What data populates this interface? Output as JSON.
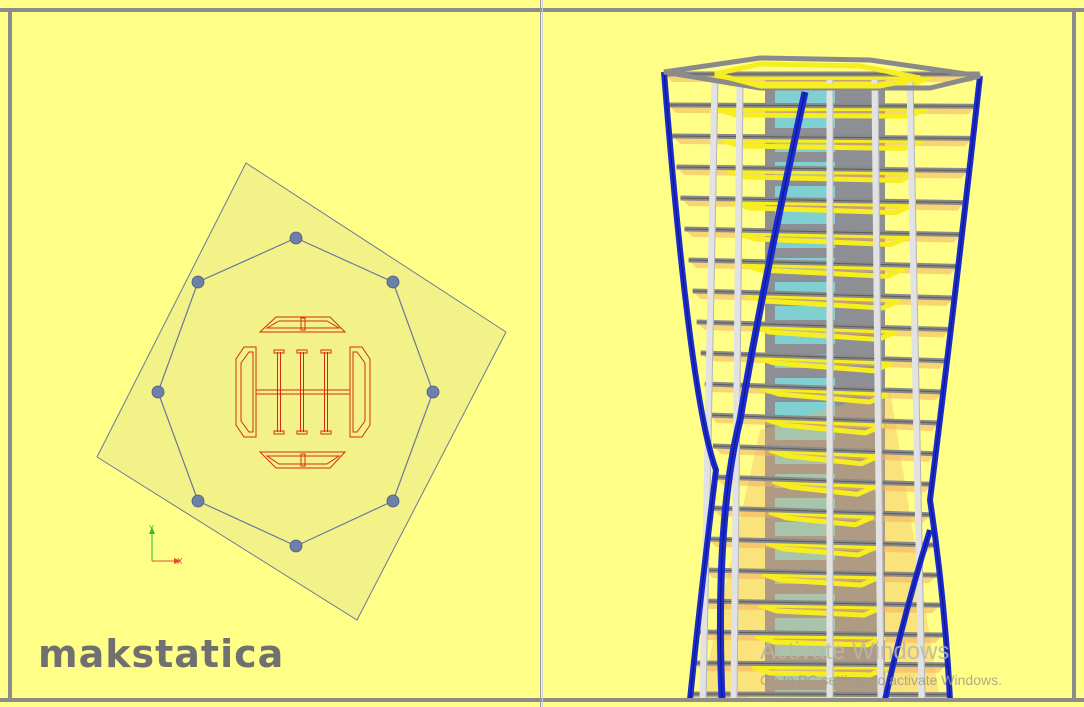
{
  "app": {
    "brand": "makstatica"
  },
  "plan_view": {
    "axis_y_label": "Y",
    "axis_x_label": "X",
    "colors": {
      "slab_fill": "#eeee88",
      "slab_stroke": "#6a7a9a",
      "column": "#6e7fa8",
      "core_lines": "#d82c10",
      "core_fill": "#f4d060",
      "axis_y": "#33bb33",
      "axis_x": "#e05030"
    }
  },
  "model_view": {
    "colors": {
      "diagrid": "#1c2ccc",
      "beam": "#8a8a8a",
      "column": "#e2e2e2",
      "core": "#7fdcdc",
      "slab": "#f2b060",
      "edge": "#f6ee20"
    }
  },
  "watermark": {
    "title": "Activate Windows",
    "subtitle": "Go to PC settings to activate Windows."
  }
}
